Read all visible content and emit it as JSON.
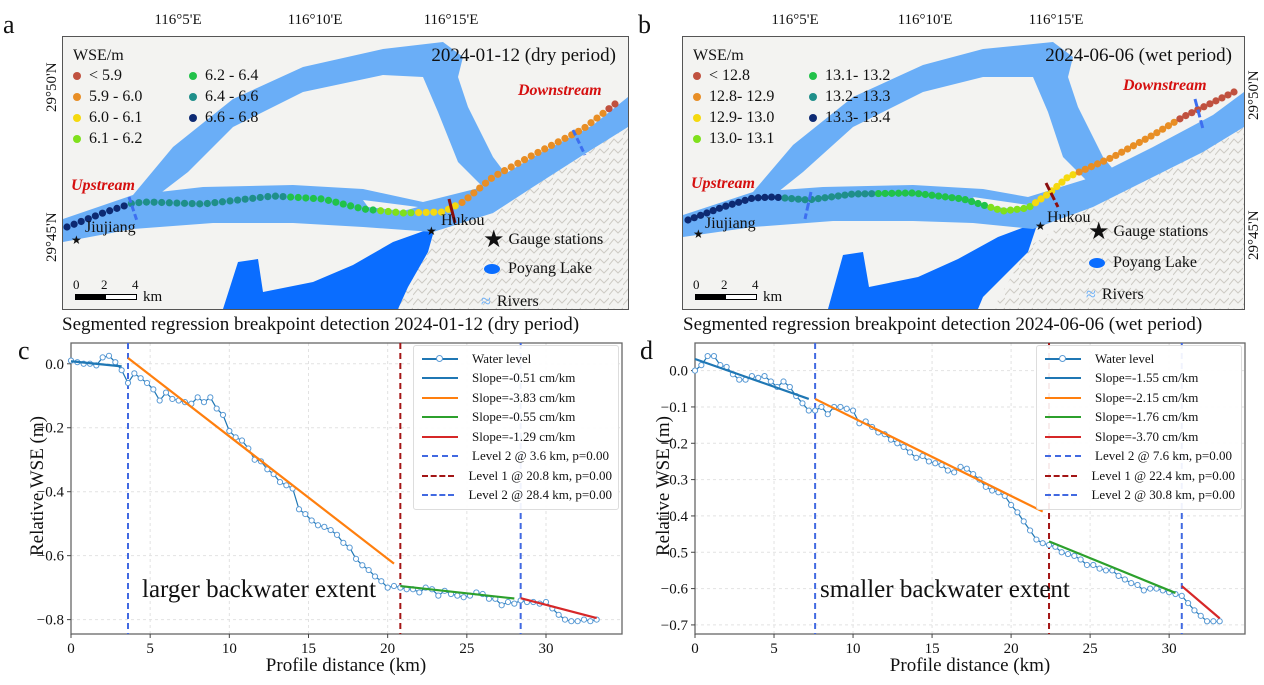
{
  "panels": {
    "a": {
      "letter": "a",
      "date": "2024-01-12 (dry period)"
    },
    "b": {
      "letter": "b",
      "date": "2024-06-06 (wet period)"
    },
    "c": {
      "letter": "c"
    },
    "d": {
      "letter": "d"
    }
  },
  "map_common": {
    "lon_ticks": [
      "116°5'E",
      "116°10'E",
      "116°15'E"
    ],
    "lat_ticks": [
      "29°50'N",
      "29°45'N"
    ],
    "legend_title": "WSE/m",
    "upstream": "Upstream",
    "downstream": "Downstream",
    "jiujiang": "Jiujiang",
    "hukou": "Hukou",
    "gauge": "Gauge stations",
    "lake": "Poyang Lake",
    "rivers": "Rivers",
    "scale_ticks": [
      "0",
      "2",
      "4"
    ],
    "scale_unit": "km",
    "colors": {
      "river": "#6aaef7",
      "lake": "#0a6dff",
      "background": "#f3f3f1",
      "breakpoint_l1": "#8b0e0e",
      "breakpoint_l2": "#3d6ff0",
      "stream_label": "#d50f0f"
    }
  },
  "map_a_legend": [
    {
      "label": "< 5.9",
      "color": "#c0513f"
    },
    {
      "label": "5.9 - 6.0",
      "color": "#e88e25"
    },
    {
      "label": "6.0 - 6.1",
      "color": "#f5d90f"
    },
    {
      "label": "6.1 - 6.2",
      "color": "#7fe01c"
    },
    {
      "label": "6.2 - 6.4",
      "color": "#21c24a"
    },
    {
      "label": "6.4 - 6.6",
      "color": "#1f8f8a"
    },
    {
      "label": "6.6 - 6.8",
      "color": "#0d2a73"
    }
  ],
  "map_b_legend": [
    {
      "label": "< 12.8",
      "color": "#c0513f"
    },
    {
      "label": "12.8- 12.9",
      "color": "#e88e25"
    },
    {
      "label": "12.9- 13.0",
      "color": "#f5d90f"
    },
    {
      "label": "13.0- 13.1",
      "color": "#7fe01c"
    },
    {
      "label": "13.1- 13.2",
      "color": "#21c24a"
    },
    {
      "label": "13.2- 13.3",
      "color": "#1f8f8a"
    },
    {
      "label": "13.3- 13.4",
      "color": "#0d2a73"
    }
  ],
  "chart_data": [
    {
      "type": "line",
      "title": "Segmented regression breakpoint detection 2024-01-12 (dry period)",
      "xlabel": "Profile distance (km)",
      "ylabel": "Relative WSE (m)",
      "xlim": [
        0,
        34.8
      ],
      "ylim": [
        -0.845,
        0.065
      ],
      "xticks": [
        0,
        5,
        10,
        15,
        20,
        25,
        30
      ],
      "yticks": [
        0.0,
        -0.2,
        -0.4,
        -0.6,
        -0.8
      ],
      "ytick_labels": [
        "0.0",
        "−0.2",
        "−0.4",
        "−0.6",
        "−0.8"
      ],
      "grid": true,
      "legend_position": "top-right",
      "annotation": "larger backwater extent",
      "water_level": {
        "name": "Water level",
        "x": [
          0,
          0.4,
          0.8,
          1.2,
          1.6,
          2.0,
          2.4,
          2.8,
          3.2,
          3.6,
          4.0,
          4.4,
          4.8,
          5.2,
          5.6,
          6.0,
          6.4,
          6.8,
          7.2,
          7.6,
          8.0,
          8.4,
          8.8,
          9.2,
          9.6,
          10.0,
          10.4,
          10.8,
          11.2,
          11.6,
          12.0,
          12.4,
          12.8,
          13.2,
          13.6,
          14.0,
          14.4,
          14.8,
          15.2,
          15.6,
          16.0,
          16.4,
          16.8,
          17.2,
          17.6,
          18.0,
          18.4,
          18.8,
          19.2,
          19.6,
          20.0,
          20.4,
          20.8,
          21.2,
          21.6,
          22.0,
          22.4,
          22.8,
          23.2,
          23.6,
          24.0,
          24.4,
          24.8,
          25.2,
          25.6,
          26.0,
          26.4,
          26.8,
          27.2,
          27.6,
          28.0,
          28.4,
          28.8,
          29.2,
          29.6,
          30.0,
          30.4,
          30.8,
          31.2,
          31.6,
          32.0,
          32.4,
          32.8,
          33.2
        ],
        "y": [
          0.01,
          0.005,
          0.0,
          0.0,
          -0.005,
          0.02,
          0.025,
          0.005,
          -0.02,
          -0.06,
          -0.03,
          -0.045,
          -0.06,
          -0.08,
          -0.115,
          -0.09,
          -0.11,
          -0.115,
          -0.12,
          -0.125,
          -0.105,
          -0.12,
          -0.105,
          -0.14,
          -0.16,
          -0.21,
          -0.23,
          -0.24,
          -0.265,
          -0.3,
          -0.305,
          -0.33,
          -0.345,
          -0.37,
          -0.38,
          -0.39,
          -0.455,
          -0.47,
          -0.49,
          -0.505,
          -0.51,
          -0.52,
          -0.535,
          -0.56,
          -0.575,
          -0.61,
          -0.63,
          -0.645,
          -0.665,
          -0.68,
          -0.7,
          -0.695,
          -0.7,
          -0.705,
          -0.705,
          -0.715,
          -0.7,
          -0.705,
          -0.725,
          -0.71,
          -0.72,
          -0.725,
          -0.73,
          -0.725,
          -0.715,
          -0.72,
          -0.735,
          -0.735,
          -0.755,
          -0.745,
          -0.75,
          -0.74,
          -0.745,
          -0.745,
          -0.75,
          -0.745,
          -0.765,
          -0.785,
          -0.8,
          -0.805,
          -0.805,
          -0.8,
          -0.805,
          -0.8
        ]
      },
      "segments": [
        {
          "name": "Slope=-0.51 cm/km",
          "color": "#1f77b4",
          "x": [
            0,
            3.2
          ],
          "y": [
            0.008,
            -0.008
          ]
        },
        {
          "name": "Slope=-3.83 cm/km",
          "color": "#ff7f0e",
          "x": [
            3.6,
            20.4
          ],
          "y": [
            0.018,
            -0.625
          ]
        },
        {
          "name": "Slope=-0.55 cm/km",
          "color": "#2ca02c",
          "x": [
            20.8,
            28.0
          ],
          "y": [
            -0.695,
            -0.734
          ]
        },
        {
          "name": "Slope=-1.29 cm/km",
          "color": "#d62728",
          "x": [
            28.4,
            33.2
          ],
          "y": [
            -0.733,
            -0.795
          ]
        }
      ],
      "breakpoints": [
        {
          "name": "Level 2 @ 3.6 km, p=0.00",
          "x": 3.6,
          "color": "#4169e1"
        },
        {
          "name": "Level 1 @ 20.8 km, p=0.00",
          "x": 20.8,
          "color": "#a31515"
        },
        {
          "name": "Level 2 @ 28.4 km, p=0.00",
          "x": 28.4,
          "color": "#4169e1"
        }
      ]
    },
    {
      "type": "line",
      "title": "Segmented regression breakpoint detection 2024-06-06 (wet period)",
      "xlabel": "Profile distance (km)",
      "ylabel": "Relative WSE (m)",
      "xlim": [
        0,
        34.8
      ],
      "ylim": [
        -0.725,
        0.076
      ],
      "xticks": [
        0,
        5,
        10,
        15,
        20,
        25,
        30
      ],
      "yticks": [
        0.0,
        -0.1,
        -0.2,
        -0.3,
        -0.4,
        -0.5,
        -0.6,
        -0.7
      ],
      "ytick_labels": [
        "0.0",
        "−0.1",
        "−0.2",
        "−0.3",
        "−0.4",
        "−0.5",
        "−0.6",
        "−0.7"
      ],
      "grid": true,
      "legend_position": "top-right",
      "annotation": "smaller backwater extent",
      "water_level": {
        "name": "Water level",
        "x": [
          0,
          0.4,
          0.8,
          1.2,
          1.6,
          2.0,
          2.4,
          2.8,
          3.2,
          3.6,
          4.0,
          4.4,
          4.8,
          5.2,
          5.6,
          6.0,
          6.4,
          6.8,
          7.2,
          7.6,
          8.0,
          8.4,
          8.8,
          9.2,
          9.6,
          10.0,
          10.4,
          10.8,
          11.2,
          11.6,
          12.0,
          12.4,
          12.8,
          13.2,
          13.6,
          14.0,
          14.4,
          14.8,
          15.2,
          15.6,
          16.0,
          16.4,
          16.8,
          17.2,
          17.6,
          18.0,
          18.4,
          18.8,
          19.2,
          19.6,
          20.0,
          20.4,
          20.8,
          21.2,
          21.6,
          22.0,
          22.4,
          22.8,
          23.2,
          23.6,
          24.0,
          24.4,
          24.8,
          25.2,
          25.6,
          26.0,
          26.4,
          26.8,
          27.2,
          27.6,
          28.0,
          28.4,
          28.8,
          29.2,
          29.6,
          30.0,
          30.4,
          30.8,
          31.2,
          31.6,
          32.0,
          32.4,
          32.8,
          33.2
        ],
        "y": [
          0.0,
          0.015,
          0.04,
          0.04,
          0.015,
          0.01,
          -0.01,
          -0.025,
          -0.025,
          -0.015,
          -0.02,
          -0.015,
          -0.03,
          -0.045,
          -0.03,
          -0.045,
          -0.07,
          -0.09,
          -0.11,
          -0.11,
          -0.1,
          -0.12,
          -0.1,
          -0.1,
          -0.105,
          -0.11,
          -0.145,
          -0.14,
          -0.155,
          -0.17,
          -0.175,
          -0.19,
          -0.2,
          -0.21,
          -0.225,
          -0.24,
          -0.235,
          -0.25,
          -0.255,
          -0.26,
          -0.275,
          -0.28,
          -0.265,
          -0.27,
          -0.285,
          -0.3,
          -0.32,
          -0.33,
          -0.335,
          -0.345,
          -0.37,
          -0.39,
          -0.415,
          -0.44,
          -0.465,
          -0.475,
          -0.48,
          -0.485,
          -0.5,
          -0.505,
          -0.51,
          -0.52,
          -0.535,
          -0.535,
          -0.545,
          -0.55,
          -0.55,
          -0.565,
          -0.575,
          -0.585,
          -0.59,
          -0.605,
          -0.6,
          -0.6,
          -0.605,
          -0.61,
          -0.615,
          -0.62,
          -0.64,
          -0.66,
          -0.675,
          -0.69,
          -0.69,
          -0.69
        ]
      },
      "segments": [
        {
          "name": "Slope=-1.55 cm/km",
          "color": "#1f77b4",
          "x": [
            0,
            7.2
          ],
          "y": [
            0.032,
            -0.078
          ]
        },
        {
          "name": "Slope=-2.15 cm/km",
          "color": "#ff7f0e",
          "x": [
            7.6,
            22.0
          ],
          "y": [
            -0.078,
            -0.388
          ]
        },
        {
          "name": "Slope=-1.76 cm/km",
          "color": "#2ca02c",
          "x": [
            22.4,
            30.4
          ],
          "y": [
            -0.47,
            -0.612
          ]
        },
        {
          "name": "Slope=-3.70 cm/km",
          "color": "#d62728",
          "x": [
            30.8,
            33.2
          ],
          "y": [
            -0.593,
            -0.682
          ]
        }
      ],
      "breakpoints": [
        {
          "name": "Level 2 @ 7.6 km, p=0.00",
          "x": 7.6,
          "color": "#4169e1"
        },
        {
          "name": "Level 1 @ 22.4 km, p=0.00",
          "x": 22.4,
          "color": "#a31515"
        },
        {
          "name": "Level 2 @ 30.8 km, p=0.00",
          "x": 30.8,
          "color": "#4169e1"
        }
      ]
    }
  ]
}
